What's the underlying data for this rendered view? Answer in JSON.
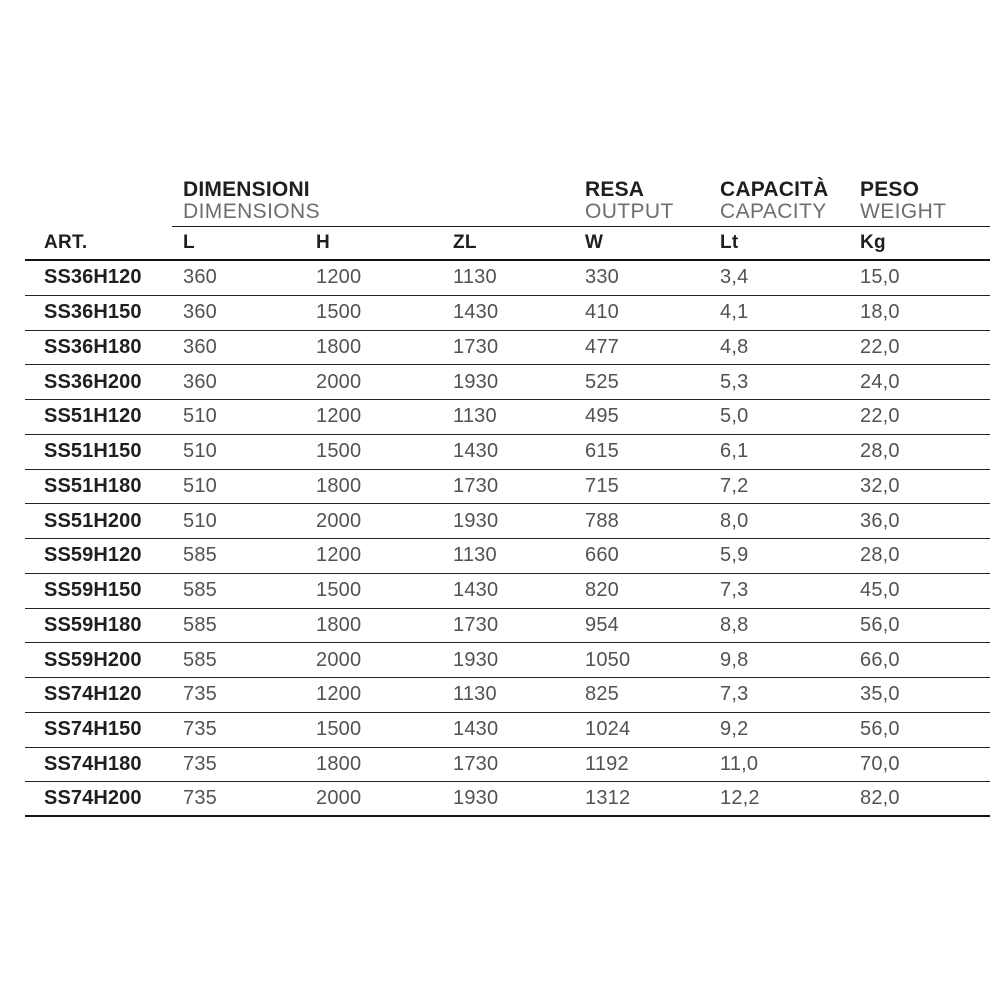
{
  "table": {
    "group_headers": [
      {
        "title": "DIMENSIONI",
        "subtitle": "DIMENSIONS"
      },
      {
        "title": "RESA",
        "subtitle": "OUTPUT"
      },
      {
        "title": "CAPACITÀ",
        "subtitle": "CAPACITY"
      },
      {
        "title": "PESO",
        "subtitle": "WEIGHT"
      }
    ],
    "columns": [
      "ART.",
      "L",
      "H",
      "ZL",
      "W",
      "Lt",
      "Kg"
    ],
    "rows": [
      [
        "SS36H120",
        "360",
        "1200",
        "1130",
        "330",
        "3,4",
        "15,0"
      ],
      [
        "SS36H150",
        "360",
        "1500",
        "1430",
        "410",
        "4,1",
        "18,0"
      ],
      [
        "SS36H180",
        "360",
        "1800",
        "1730",
        "477",
        "4,8",
        "22,0"
      ],
      [
        "SS36H200",
        "360",
        "2000",
        "1930",
        "525",
        "5,3",
        "24,0"
      ],
      [
        "SS51H120",
        "510",
        "1200",
        "1130",
        "495",
        "5,0",
        "22,0"
      ],
      [
        "SS51H150",
        "510",
        "1500",
        "1430",
        "615",
        "6,1",
        "28,0"
      ],
      [
        "SS51H180",
        "510",
        "1800",
        "1730",
        "715",
        "7,2",
        "32,0"
      ],
      [
        "SS51H200",
        "510",
        "2000",
        "1930",
        "788",
        "8,0",
        "36,0"
      ],
      [
        "SS59H120",
        "585",
        "1200",
        "1130",
        "660",
        "5,9",
        "28,0"
      ],
      [
        "SS59H150",
        "585",
        "1500",
        "1430",
        "820",
        "7,3",
        "45,0"
      ],
      [
        "SS59H180",
        "585",
        "1800",
        "1730",
        "954",
        "8,8",
        "56,0"
      ],
      [
        "SS59H200",
        "585",
        "2000",
        "1930",
        "1050",
        "9,8",
        "66,0"
      ],
      [
        "SS74H120",
        "735",
        "1200",
        "1130",
        "825",
        "7,3",
        "35,0"
      ],
      [
        "SS74H150",
        "735",
        "1500",
        "1430",
        "1024",
        "9,2",
        "56,0"
      ],
      [
        "SS74H180",
        "735",
        "1800",
        "1730",
        "1192",
        "11,0",
        "70,0"
      ],
      [
        "SS74H200",
        "735",
        "2000",
        "1930",
        "1312",
        "12,2",
        "82,0"
      ]
    ],
    "colors": {
      "text_dark": "#1f1f1f",
      "text_gray": "#525252",
      "subtitle_gray": "#6d6d6d",
      "line": "#1c1c1c",
      "background": "#ffffff"
    }
  }
}
